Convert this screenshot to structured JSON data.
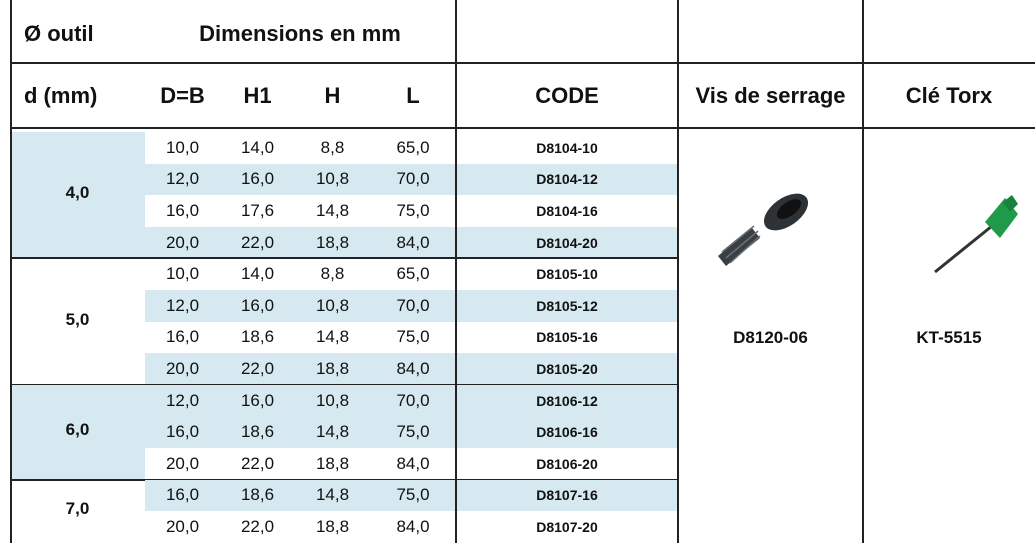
{
  "header": {
    "row1": [
      "Ø outil",
      "Dimensions en mm"
    ],
    "row2": [
      "d (mm)",
      "D=B",
      "H1",
      "H",
      "L",
      "CODE",
      "Vis de serrage",
      "Clé Torx"
    ]
  },
  "groups": [
    {
      "d": "4,0",
      "rows": [
        [
          "10,0",
          "14,0",
          "8,8",
          "65,0",
          "D8104-10"
        ],
        [
          "12,0",
          "16,0",
          "10,8",
          "70,0",
          "D8104-12"
        ],
        [
          "16,0",
          "17,6",
          "14,8",
          "75,0",
          "D8104-16"
        ],
        [
          "20,0",
          "22,0",
          "18,8",
          "84,0",
          "D8104-20"
        ]
      ]
    },
    {
      "d": "5,0",
      "rows": [
        [
          "10,0",
          "14,0",
          "8,8",
          "65,0",
          "D8105-10"
        ],
        [
          "12,0",
          "16,0",
          "10,8",
          "70,0",
          "D8105-12"
        ],
        [
          "16,0",
          "18,6",
          "14,8",
          "75,0",
          "D8105-16"
        ],
        [
          "20,0",
          "22,0",
          "18,8",
          "84,0",
          "D8105-20"
        ]
      ]
    },
    {
      "d": "6,0",
      "rows": [
        [
          "12,0",
          "16,0",
          "10,8",
          "70,0",
          "D8106-12"
        ],
        [
          "16,0",
          "18,6",
          "14,8",
          "75,0",
          "D8106-16"
        ],
        [
          "20,0",
          "22,0",
          "18,8",
          "84,0",
          "D8106-20"
        ]
      ]
    },
    {
      "d": "7,0",
      "rows": [
        [
          "16,0",
          "18,6",
          "14,8",
          "75,0",
          "D8107-16"
        ],
        [
          "20,0",
          "22,0",
          "18,8",
          "84,0",
          "D8107-20"
        ]
      ]
    }
  ],
  "screw": "D8120-06",
  "key": "KT-5515"
}
